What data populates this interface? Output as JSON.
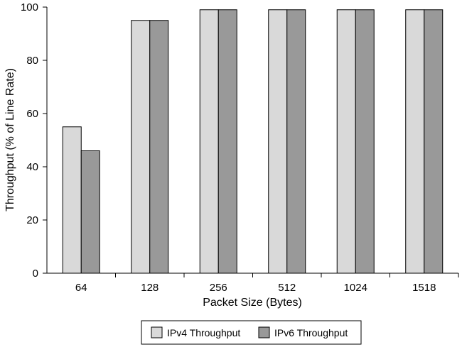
{
  "chart_data": {
    "type": "bar",
    "xlabel": "Packet Size (Bytes)",
    "ylabel": "Throughput (% of Line Rate)",
    "categories": [
      "64",
      "128",
      "256",
      "512",
      "1024",
      "1518"
    ],
    "series": [
      {
        "name": "IPv4 Throughput",
        "values": [
          55,
          95,
          99,
          99,
          99,
          99
        ],
        "color": "#d9d9d9"
      },
      {
        "name": "IPv6 Throughput",
        "values": [
          46,
          95,
          99,
          99,
          99,
          99
        ],
        "color": "#999999"
      }
    ],
    "ylim": [
      0,
      100
    ],
    "yticks": [
      0,
      20,
      40,
      60,
      80,
      100
    ],
    "grid": false,
    "legend_position": "bottom-center"
  }
}
